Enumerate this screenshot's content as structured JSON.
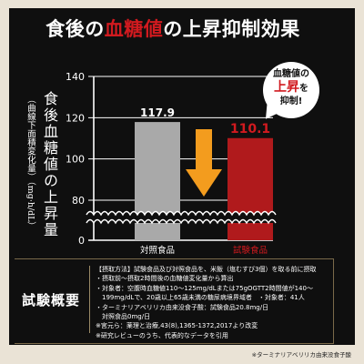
{
  "title": {
    "before": "食後の",
    "highlight": "血糖値",
    "after": "の上昇抑制効果"
  },
  "colors": {
    "background": "#0f0f0f",
    "accent_red": "#d11a1f",
    "control_bar": "#a9a9a9",
    "test_bar": "#b01a1c",
    "arrow": "#f39c1e",
    "page": "#eae3d6"
  },
  "y_axis_title": {
    "main": "食後血糖値の上昇量",
    "sub": "（曲線下面積変化量）（mg·h/dL）"
  },
  "bubble": {
    "line1": "血糖値の",
    "line2": "上昇",
    "line2_suffix": "を",
    "line3": "抑制!"
  },
  "chart_data": {
    "type": "bar",
    "categories": [
      "対照食品",
      "試験食品"
    ],
    "values": [
      117.9,
      110.1
    ],
    "value_labels": [
      "117.9",
      "110.1"
    ],
    "y_ticks": [
      "0",
      "80",
      "100",
      "120",
      "140"
    ],
    "ylabel": "食後血糖値の上昇量（曲線下面積変化量）（mg·h/dL）",
    "axis_break": true,
    "annotation": "arrow-down"
  },
  "study": {
    "label": "試験概要",
    "lines": [
      "【摂取方法】試験食品及び対照食品を、米飯（塩むすび3個）を取る前に摂取",
      "・摂取前～摂取2時間後の血糖値変化量から算出",
      "・対象者：空腹時血糖値110～125mg/dLまたは75gOGTT2時間値が140～",
      "199mg/dLで、20歳以上65歳未満の糖尿病境界域者　・対象者：41人",
      "・ターミナリアベリリカ由来没食子酸：試験食品20.8mg/日",
      "対照食品0mg/日",
      "※宮元ら：薬理と治療,43(8),1365-1372,2017より改変",
      "※研究レビューのうち、代表的なデータを引用"
    ]
  },
  "footnote": "※ターミナリアベリリカ由来没食子酸"
}
